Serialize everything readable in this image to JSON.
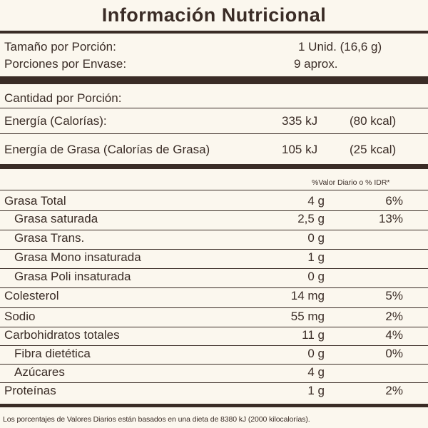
{
  "title": "Información Nutricional",
  "serving": {
    "size_label": "Tamaño por Porción:",
    "size_value": "1 Unid. (16,6 g)",
    "per_container_label": "Porciones por Envase:",
    "per_container_value": "9 aprox."
  },
  "amount_header": "Cantidad por Porción:",
  "energy": {
    "label": "Energía (Calorías):",
    "kj": "335 kJ",
    "kcal": "(80 kcal)"
  },
  "fat_energy": {
    "label": "Energía de Grasa (Calorías de Grasa)",
    "kj": "105 kJ",
    "kcal": "(25 kcal)"
  },
  "dv_header": "%Valor Diario o % IDR*",
  "nutrients": [
    {
      "label": "Grasa Total",
      "amount": "4 g",
      "dv": "6%"
    },
    {
      "label": "Grasa saturada",
      "amount": "2,5 g",
      "dv": "13%"
    },
    {
      "label": "Grasa Trans.",
      "amount": "0 g",
      "dv": ""
    },
    {
      "label": "Grasa Mono insaturada",
      "amount": "1 g",
      "dv": ""
    },
    {
      "label": "Grasa Poli insaturada",
      "amount": "0 g",
      "dv": ""
    },
    {
      "label": "Colesterol",
      "amount": "14 mg",
      "dv": "5%"
    },
    {
      "label": "Sodio",
      "amount": "55 mg",
      "dv": "2%"
    },
    {
      "label": "Carbohidratos totales",
      "amount": "11 g",
      "dv": "4%"
    },
    {
      "label": "Fibra dietética",
      "amount": "0 g",
      "dv": "0%"
    },
    {
      "label": "Azúcares",
      "amount": "4 g",
      "dv": ""
    },
    {
      "label": "Proteínas",
      "amount": "1 g",
      "dv": "2%"
    }
  ],
  "footnote": "Los porcentajes de Valores Diarios están basados en una dieta de 8380 kJ (2000 kilocalorías).",
  "colors": {
    "ink": "#3a2c26",
    "background": "#fbf7ee"
  }
}
